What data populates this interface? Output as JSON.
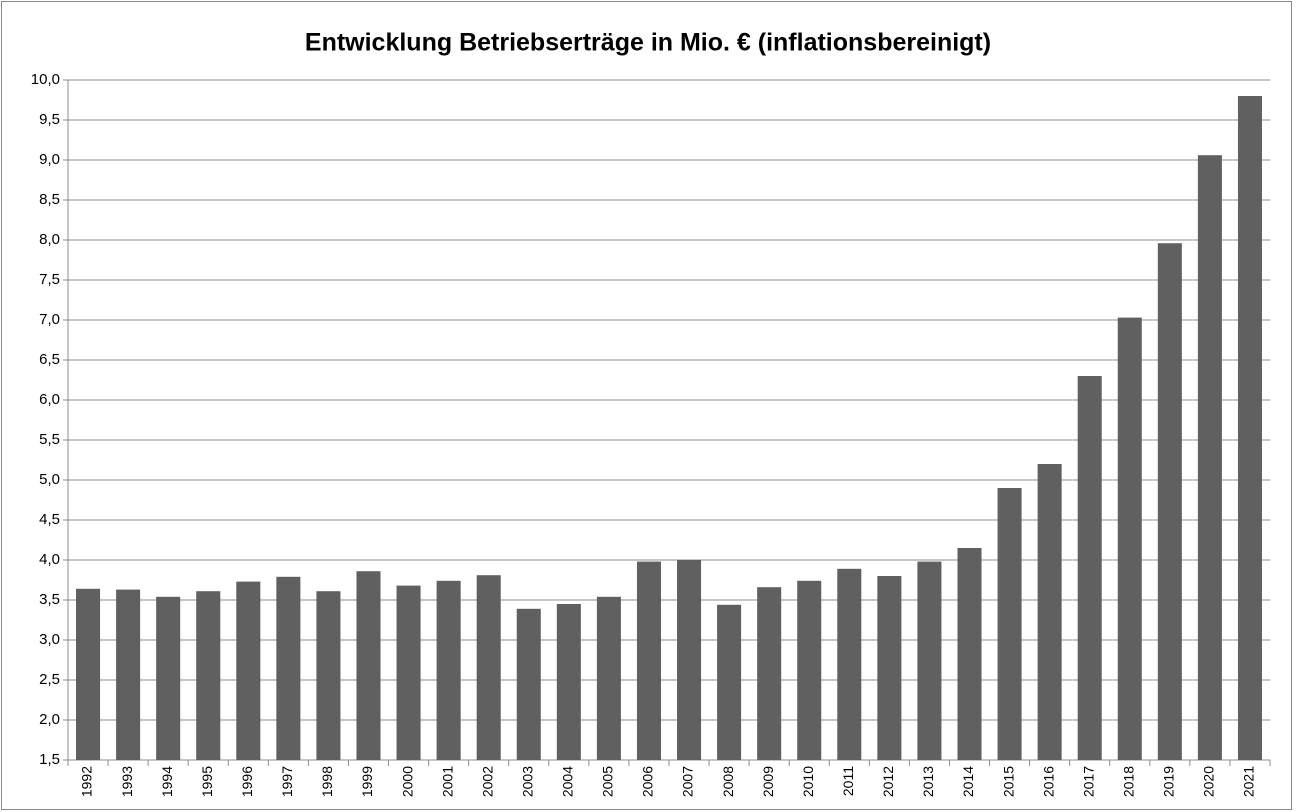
{
  "chart_data": {
    "type": "bar",
    "title": "Entwicklung  Betriebserträge  in Mio. € (inflationsbereinigt)",
    "categories": [
      "1992",
      "1993",
      "1994",
      "1995",
      "1996",
      "1997",
      "1998",
      "1999",
      "2000",
      "2001",
      "2002",
      "2003",
      "2004",
      "2005",
      "2006",
      "2007",
      "2008",
      "2009",
      "2010",
      "2011",
      "2012",
      "2013",
      "2014",
      "2015",
      "2016",
      "2017",
      "2018",
      "2019",
      "2020",
      "2021"
    ],
    "values": [
      3.64,
      3.63,
      3.54,
      3.61,
      3.73,
      3.79,
      3.61,
      3.86,
      3.68,
      3.74,
      3.81,
      3.39,
      3.45,
      3.54,
      3.98,
      4.0,
      3.44,
      3.66,
      3.74,
      3.89,
      3.8,
      3.98,
      4.15,
      4.9,
      5.2,
      6.3,
      7.03,
      7.96,
      9.06,
      9.8
    ],
    "color": "#606060",
    "ylim": [
      1.5,
      10
    ],
    "yticks": [
      {
        "value": 1.5,
        "label": "1,5"
      },
      {
        "value": 2,
        "label": "2,0"
      },
      {
        "value": 2.5,
        "label": "2,5"
      },
      {
        "value": 3,
        "label": "3,0"
      },
      {
        "value": 3.5,
        "label": "3,5"
      },
      {
        "value": 4,
        "label": "4,0"
      },
      {
        "value": 4.5,
        "label": "4,5"
      },
      {
        "value": 5,
        "label": "5,0"
      },
      {
        "value": 5.5,
        "label": "5,5"
      },
      {
        "value": 6,
        "label": "6,0"
      },
      {
        "value": 6.5,
        "label": "6,5"
      },
      {
        "value": 7,
        "label": "7,0"
      },
      {
        "value": 7.5,
        "label": "7,5"
      },
      {
        "value": 8,
        "label": "8,0"
      },
      {
        "value": 8.5,
        "label": "8,5"
      },
      {
        "value": 9,
        "label": "9,0"
      },
      {
        "value": 9.5,
        "label": "9,5"
      },
      {
        "value": 10,
        "label": "10,0"
      }
    ],
    "grid": true
  }
}
